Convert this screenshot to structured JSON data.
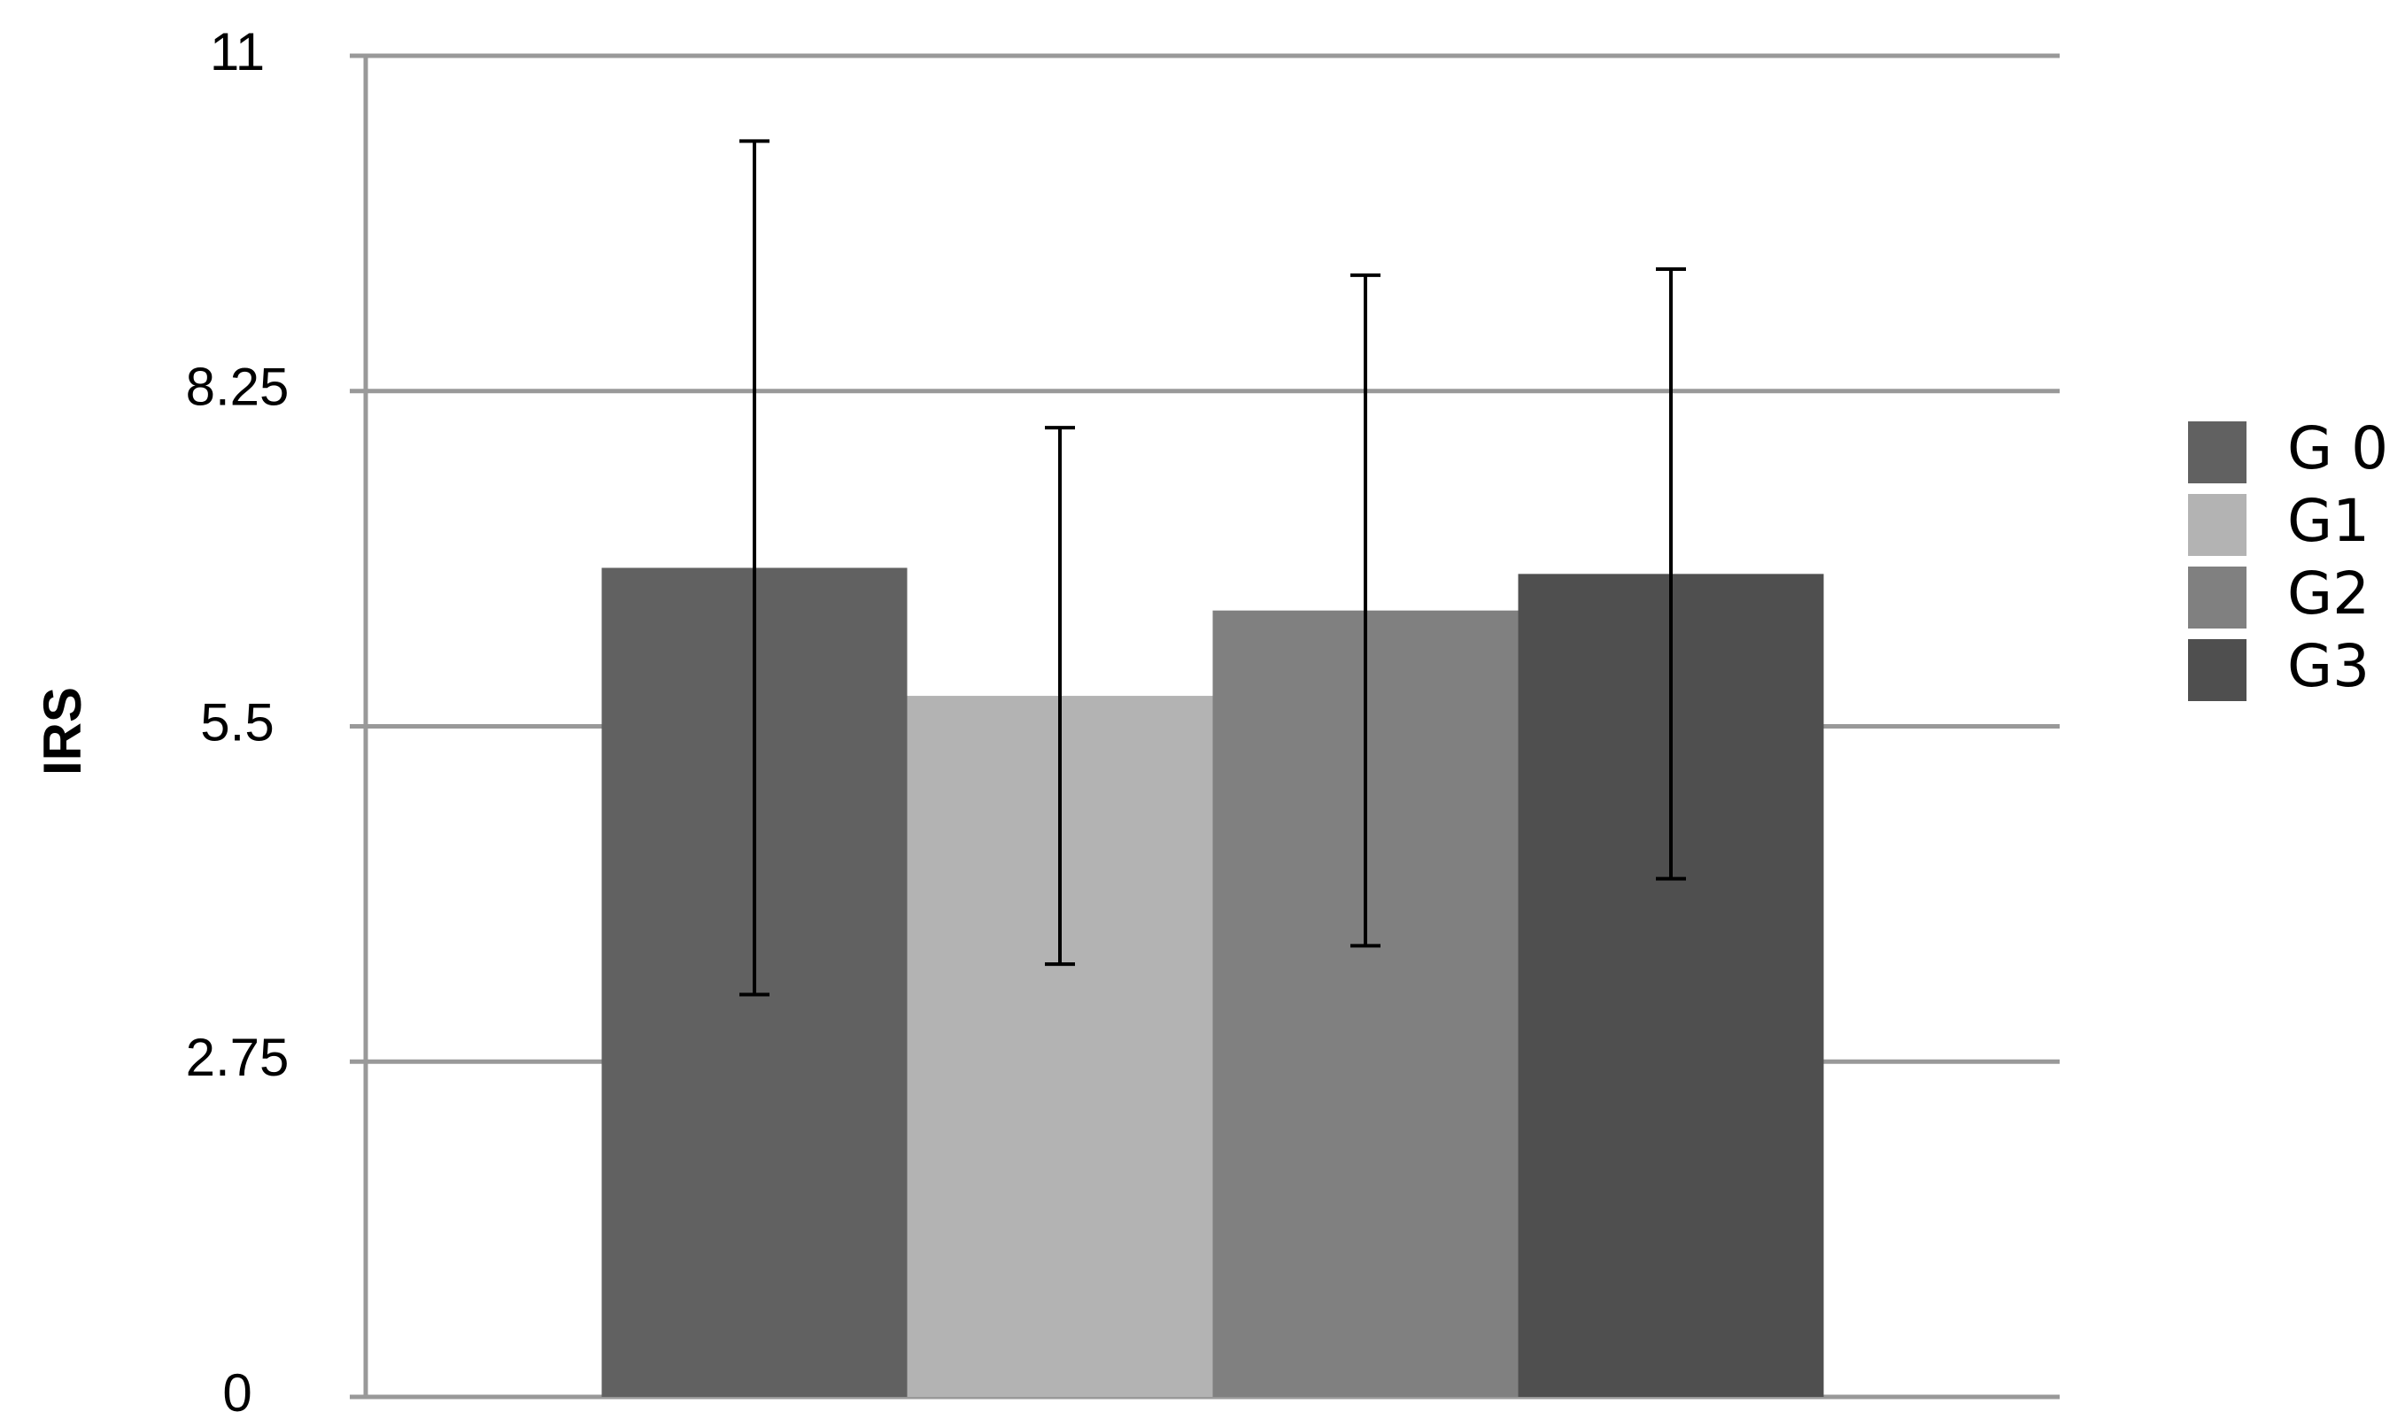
{
  "chart_data": {
    "type": "bar",
    "y_label": "IRS",
    "categories": [
      null
    ],
    "series": [
      {
        "name": "G 0",
        "color": "#616161",
        "values": [
          6.8
        ],
        "errors": [
          3.5
        ]
      },
      {
        "name": "G1",
        "color": "#b3b3b3",
        "values": [
          5.75
        ],
        "errors": [
          2.2
        ]
      },
      {
        "name": "G2",
        "color": "#808080",
        "values": [
          6.45
        ],
        "errors": [
          2.75
        ]
      },
      {
        "name": "G3",
        "color": "#4f4f4f",
        "values": [
          6.75
        ],
        "errors": [
          2.5
        ]
      }
    ],
    "ylim": [
      0,
      11
    ],
    "yticks": [
      0,
      2.75,
      5.5,
      8.25,
      11
    ],
    "grid": true,
    "legend": "right"
  }
}
